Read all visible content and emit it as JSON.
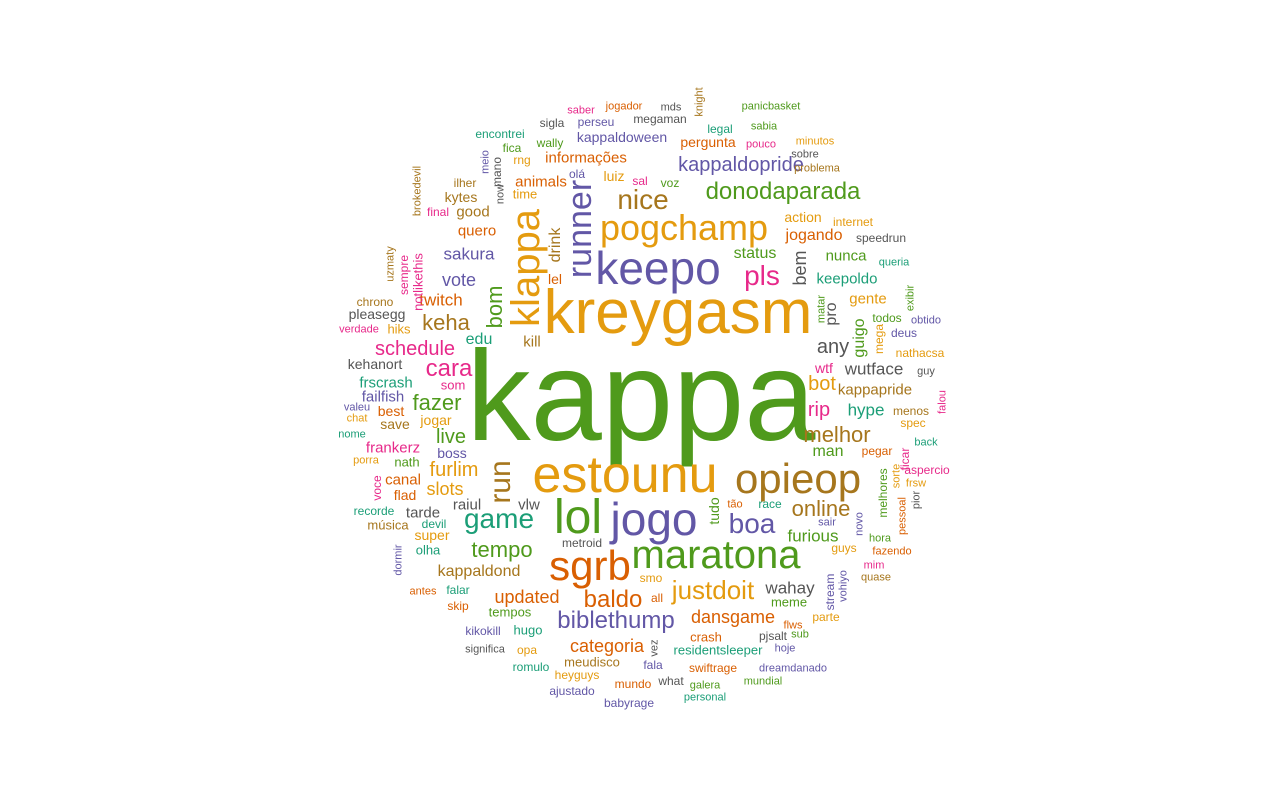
{
  "palette": {
    "green": "#4f9a1c",
    "orange": "#e49b0f",
    "purple": "#6257a6",
    "teal": "#1b9e77",
    "darkorange": "#d95f02",
    "magenta": "#e7298a",
    "brown": "#a6761d",
    "gray": "#555555"
  },
  "words": [
    {
      "text": "kappa",
      "color": "green"
    },
    {
      "text": "kreygasm",
      "color": "orange"
    },
    {
      "text": "estounu",
      "color": "orange"
    },
    {
      "text": "maratona",
      "color": "green"
    },
    {
      "text": "keepo",
      "color": "purple"
    },
    {
      "text": "jogo",
      "color": "purple"
    },
    {
      "text": "opieop",
      "color": "brown"
    },
    {
      "text": "lol",
      "color": "green"
    },
    {
      "text": "sgrb",
      "color": "darkorange"
    },
    {
      "text": "pogchamp",
      "color": "orange"
    },
    {
      "text": "klappa",
      "color": "orange"
    },
    {
      "text": "runner",
      "color": "purple"
    },
    {
      "text": "donodaparada",
      "color": "green"
    },
    {
      "text": "game",
      "color": "teal"
    },
    {
      "text": "run",
      "color": "brown"
    },
    {
      "text": "baldo",
      "color": "darkorange"
    },
    {
      "text": "biblethump",
      "color": "purple"
    },
    {
      "text": "justdoit",
      "color": "orange"
    },
    {
      "text": "boa",
      "color": "purple"
    },
    {
      "text": "pls",
      "color": "magenta"
    },
    {
      "text": "nice",
      "color": "brown"
    },
    {
      "text": "kappaldopride",
      "color": "purple"
    },
    {
      "text": "melhor",
      "color": "brown"
    },
    {
      "text": "tempo",
      "color": "green"
    },
    {
      "text": "online",
      "color": "brown"
    },
    {
      "text": "bom",
      "color": "green"
    },
    {
      "text": "cara",
      "color": "magenta"
    },
    {
      "text": "fazer",
      "color": "green"
    },
    {
      "text": "keha",
      "color": "brown"
    },
    {
      "text": "bot",
      "color": "orange"
    },
    {
      "text": "rip",
      "color": "magenta"
    },
    {
      "text": "any",
      "color": "gray"
    },
    {
      "text": "furlim",
      "color": "orange"
    },
    {
      "text": "schedule",
      "color": "magenta"
    },
    {
      "text": "live",
      "color": "green"
    },
    {
      "text": "vote",
      "color": "purple"
    },
    {
      "text": "updated",
      "color": "darkorange"
    },
    {
      "text": "kappaldond",
      "color": "brown"
    },
    {
      "text": "slots",
      "color": "orange"
    },
    {
      "text": "dansgame",
      "color": "darkorange"
    },
    {
      "text": "categoria",
      "color": "darkorange"
    },
    {
      "text": "hype",
      "color": "teal"
    },
    {
      "text": "wutface",
      "color": "gray"
    },
    {
      "text": "kappapride",
      "color": "brown"
    },
    {
      "text": "furious",
      "color": "green"
    },
    {
      "text": "wahay",
      "color": "gray"
    },
    {
      "text": "sakura",
      "color": "purple"
    },
    {
      "text": "twitch",
      "color": "darkorange"
    },
    {
      "text": "drink",
      "color": "brown"
    },
    {
      "text": "bem",
      "color": "gray"
    },
    {
      "text": "status",
      "color": "green"
    },
    {
      "text": "jogando",
      "color": "darkorange"
    },
    {
      "text": "action",
      "color": "orange"
    },
    {
      "text": "nunca",
      "color": "green"
    },
    {
      "text": "keepoldo",
      "color": "teal"
    },
    {
      "text": "gente",
      "color": "orange"
    },
    {
      "text": "informações",
      "color": "darkorange"
    },
    {
      "text": "animals",
      "color": "darkorange"
    },
    {
      "text": "kappaldoween",
      "color": "purple"
    },
    {
      "text": "pergunta",
      "color": "darkorange"
    },
    {
      "text": "luiz",
      "color": "orange"
    },
    {
      "text": "voz",
      "color": "green"
    },
    {
      "text": "sal",
      "color": "magenta"
    },
    {
      "text": "olá",
      "color": "purple"
    },
    {
      "text": "quero",
      "color": "darkorange"
    },
    {
      "text": "good",
      "color": "brown"
    },
    {
      "text": "kytes",
      "color": "brown"
    },
    {
      "text": "time",
      "color": "orange"
    },
    {
      "text": "edu",
      "color": "teal"
    },
    {
      "text": "kill",
      "color": "brown"
    },
    {
      "text": "lel",
      "color": "darkorange"
    },
    {
      "text": "guigo",
      "color": "green"
    },
    {
      "text": "pro",
      "color": "gray"
    },
    {
      "text": "matar",
      "color": "green"
    },
    {
      "text": "mega",
      "color": "orange"
    },
    {
      "text": "todos",
      "color": "green"
    },
    {
      "text": "man",
      "color": "green"
    },
    {
      "text": "wtf",
      "color": "magenta"
    },
    {
      "text": "tudo",
      "color": "green"
    },
    {
      "text": "raiul",
      "color": "gray"
    },
    {
      "text": "vlw",
      "color": "gray"
    },
    {
      "text": "canal",
      "color": "darkorange"
    },
    {
      "text": "flad",
      "color": "darkorange"
    },
    {
      "text": "tarde",
      "color": "gray"
    },
    {
      "text": "super",
      "color": "orange"
    },
    {
      "text": "olha",
      "color": "teal"
    },
    {
      "text": "devil",
      "color": "teal"
    },
    {
      "text": "música",
      "color": "brown"
    },
    {
      "text": "recorde",
      "color": "teal"
    },
    {
      "text": "metroid",
      "color": "gray"
    },
    {
      "text": "frscrash",
      "color": "teal"
    },
    {
      "text": "failfish",
      "color": "purple"
    },
    {
      "text": "best",
      "color": "darkorange"
    },
    {
      "text": "save",
      "color": "brown"
    },
    {
      "text": "jogar",
      "color": "orange"
    },
    {
      "text": "som",
      "color": "magenta"
    },
    {
      "text": "boss",
      "color": "purple"
    },
    {
      "text": "frankerz",
      "color": "magenta"
    },
    {
      "text": "nath",
      "color": "green"
    },
    {
      "text": "kehanort",
      "color": "gray"
    },
    {
      "text": "pleasegg",
      "color": "gray"
    },
    {
      "text": "hiks",
      "color": "orange"
    },
    {
      "text": "chrono",
      "color": "brown"
    },
    {
      "text": "verdade",
      "color": "magenta"
    },
    {
      "text": "valeu",
      "color": "purple"
    },
    {
      "text": "chat",
      "color": "orange"
    },
    {
      "text": "nome",
      "color": "teal"
    },
    {
      "text": "porra",
      "color": "orange"
    },
    {
      "text": "voce",
      "color": "magenta"
    },
    {
      "text": "notlikethis",
      "color": "magenta"
    },
    {
      "text": "sempre",
      "color": "magenta"
    },
    {
      "text": "uzmaty",
      "color": "brown"
    },
    {
      "text": "brokedevil",
      "color": "brown"
    },
    {
      "text": "final",
      "color": "magenta"
    },
    {
      "text": "ilher",
      "color": "brown"
    },
    {
      "text": "mano",
      "color": "gray"
    },
    {
      "text": "meio",
      "color": "purple"
    },
    {
      "text": "now",
      "color": "gray"
    },
    {
      "text": "rng",
      "color": "orange"
    },
    {
      "text": "fica",
      "color": "green"
    },
    {
      "text": "wally",
      "color": "green"
    },
    {
      "text": "encontrei",
      "color": "teal"
    },
    {
      "text": "sigla",
      "color": "gray"
    },
    {
      "text": "perseu",
      "color": "purple"
    },
    {
      "text": "saber",
      "color": "magenta"
    },
    {
      "text": "jogador",
      "color": "darkorange"
    },
    {
      "text": "mds",
      "color": "gray"
    },
    {
      "text": "megaman",
      "color": "gray"
    },
    {
      "text": "knight",
      "color": "brown"
    },
    {
      "text": "panicbasket",
      "color": "green"
    },
    {
      "text": "legal",
      "color": "teal"
    },
    {
      "text": "sabia",
      "color": "green"
    },
    {
      "text": "pouco",
      "color": "magenta"
    },
    {
      "text": "minutos",
      "color": "orange"
    },
    {
      "text": "sobre",
      "color": "gray"
    },
    {
      "text": "problema",
      "color": "brown"
    },
    {
      "text": "internet",
      "color": "orange"
    },
    {
      "text": "speedrun",
      "color": "gray"
    },
    {
      "text": "queria",
      "color": "teal"
    },
    {
      "text": "exibir",
      "color": "green"
    },
    {
      "text": "obtido",
      "color": "purple"
    },
    {
      "text": "deus",
      "color": "purple"
    },
    {
      "text": "nathacsa",
      "color": "orange"
    },
    {
      "text": "guy",
      "color": "gray"
    },
    {
      "text": "menos",
      "color": "brown"
    },
    {
      "text": "falou",
      "color": "magenta"
    },
    {
      "text": "spec",
      "color": "orange"
    },
    {
      "text": "back",
      "color": "teal"
    },
    {
      "text": "pegar",
      "color": "darkorange"
    },
    {
      "text": "ficar",
      "color": "magenta"
    },
    {
      "text": "aspercio",
      "color": "magenta"
    },
    {
      "text": "frsw",
      "color": "orange"
    },
    {
      "text": "sorte",
      "color": "orange"
    },
    {
      "text": "melhores",
      "color": "green"
    },
    {
      "text": "pessoal",
      "color": "darkorange"
    },
    {
      "text": "pior",
      "color": "gray"
    },
    {
      "text": "hora",
      "color": "green"
    },
    {
      "text": "fazendo",
      "color": "darkorange"
    },
    {
      "text": "novo",
      "color": "purple"
    },
    {
      "text": "sair",
      "color": "purple"
    },
    {
      "text": "race",
      "color": "teal"
    },
    {
      "text": "tão",
      "color": "darkorange"
    },
    {
      "text": "guys",
      "color": "orange"
    },
    {
      "text": "mim",
      "color": "magenta"
    },
    {
      "text": "quase",
      "color": "brown"
    },
    {
      "text": "vohiyo",
      "color": "purple"
    },
    {
      "text": "stream",
      "color": "purple"
    },
    {
      "text": "smo",
      "color": "orange"
    },
    {
      "text": "all",
      "color": "darkorange"
    },
    {
      "text": "meme",
      "color": "green"
    },
    {
      "text": "parte",
      "color": "orange"
    },
    {
      "text": "flws",
      "color": "darkorange"
    },
    {
      "text": "pjsalt",
      "color": "gray"
    },
    {
      "text": "sub",
      "color": "green"
    },
    {
      "text": "crash",
      "color": "darkorange"
    },
    {
      "text": "hoje",
      "color": "purple"
    },
    {
      "text": "residentsleeper",
      "color": "teal"
    },
    {
      "text": "dreamdanado",
      "color": "purple"
    },
    {
      "text": "swiftrage",
      "color": "darkorange"
    },
    {
      "text": "mundial",
      "color": "green"
    },
    {
      "text": "fala",
      "color": "purple"
    },
    {
      "text": "vez",
      "color": "gray"
    },
    {
      "text": "what",
      "color": "gray"
    },
    {
      "text": "galera",
      "color": "green"
    },
    {
      "text": "personal",
      "color": "teal"
    },
    {
      "text": "meudisco",
      "color": "brown"
    },
    {
      "text": "mundo",
      "color": "darkorange"
    },
    {
      "text": "babyrage",
      "color": "purple"
    },
    {
      "text": "ajustado",
      "color": "purple"
    },
    {
      "text": "heyguys",
      "color": "orange"
    },
    {
      "text": "romulo",
      "color": "teal"
    },
    {
      "text": "opa",
      "color": "orange"
    },
    {
      "text": "significa",
      "color": "gray"
    },
    {
      "text": "hugo",
      "color": "teal"
    },
    {
      "text": "kikokill",
      "color": "purple"
    },
    {
      "text": "tempos",
      "color": "green"
    },
    {
      "text": "skip",
      "color": "darkorange"
    },
    {
      "text": "falar",
      "color": "teal"
    },
    {
      "text": "antes",
      "color": "darkorange"
    },
    {
      "text": "dormir",
      "color": "purple"
    }
  ]
}
